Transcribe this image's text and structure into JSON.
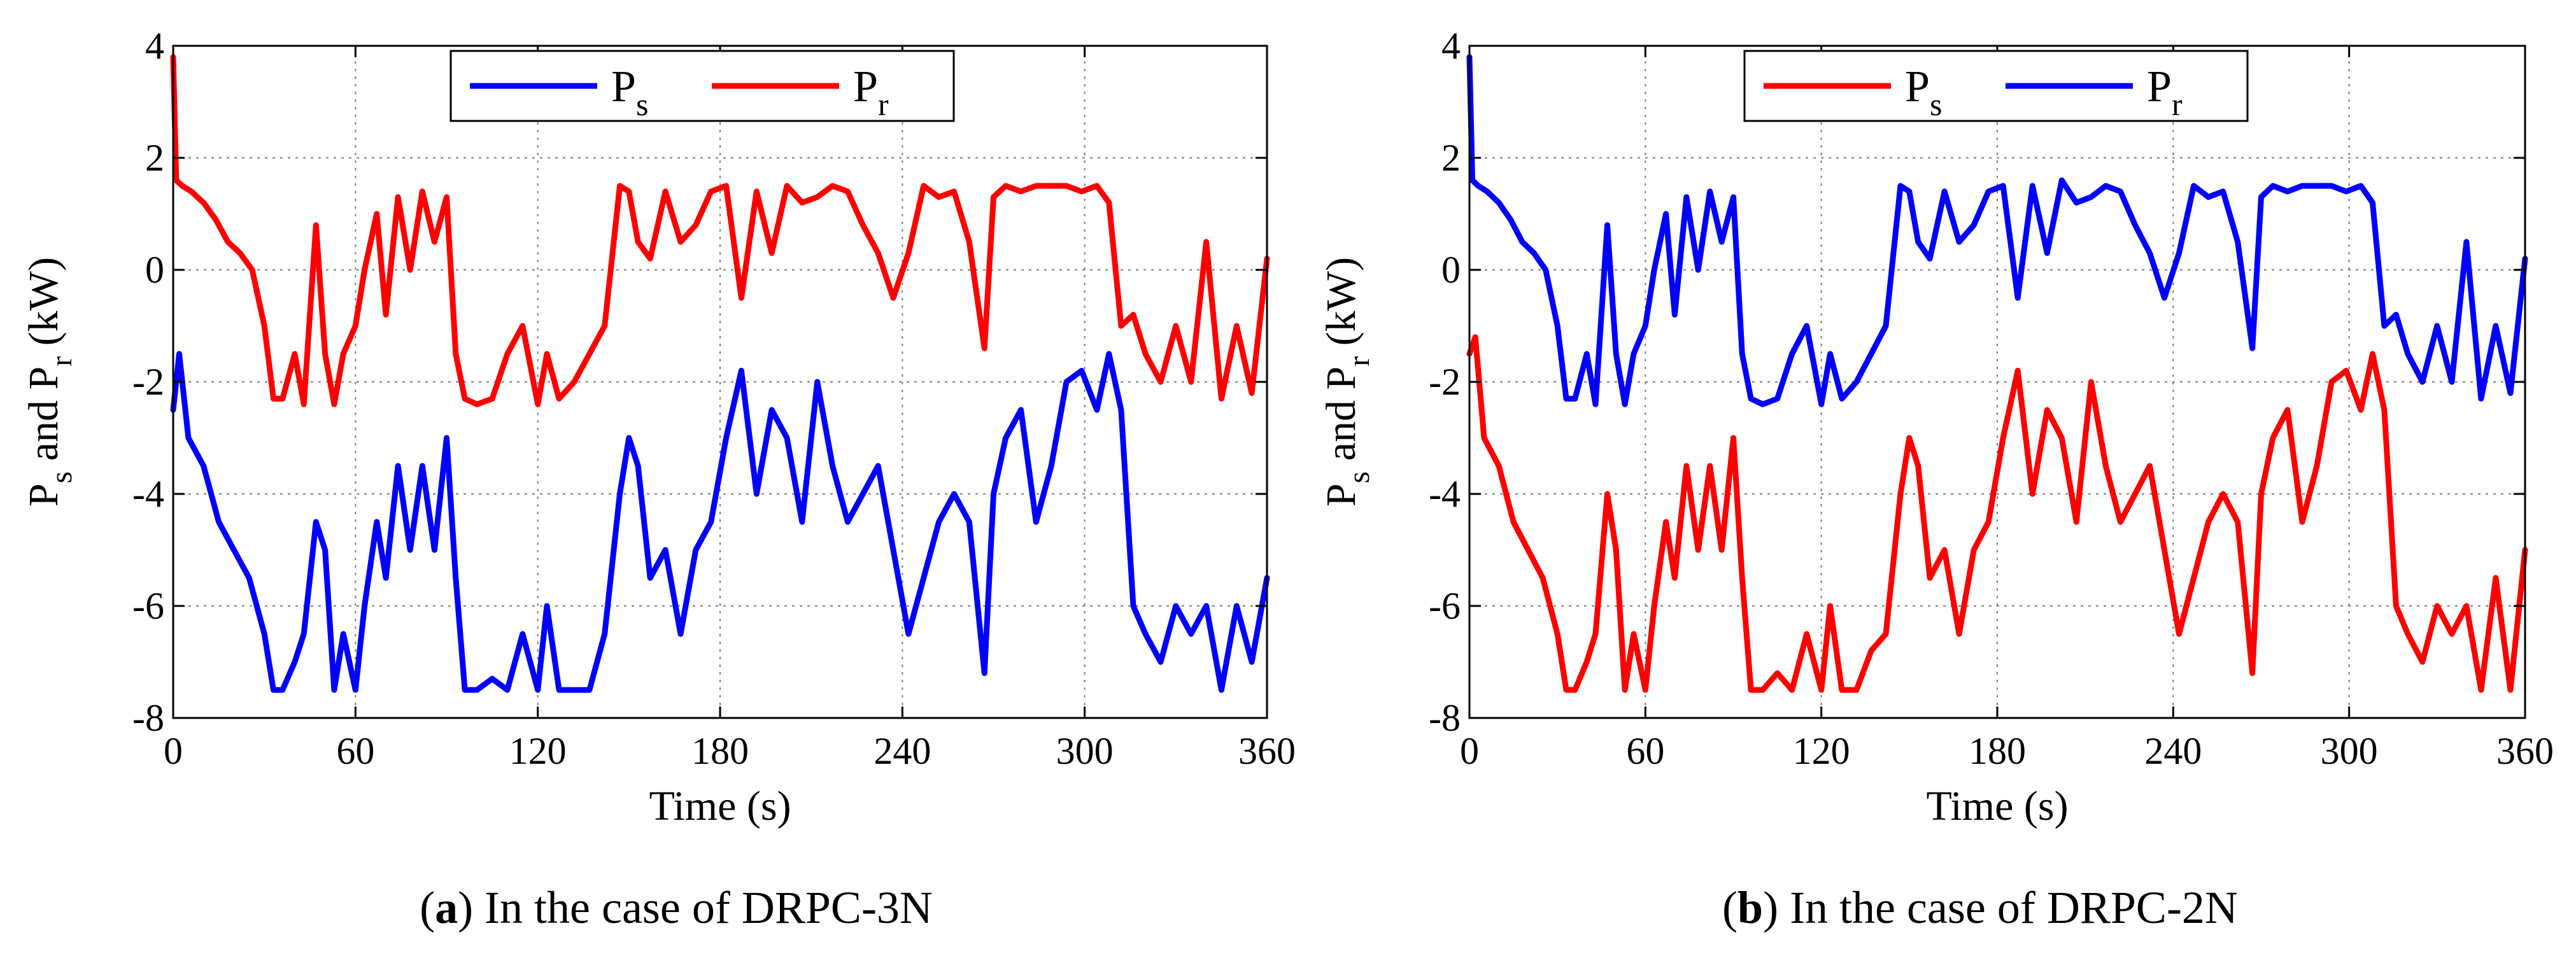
{
  "colors": {
    "blue": "#0000ff",
    "red": "#ff0000"
  },
  "chart_data": [
    {
      "type": "line",
      "id": "a",
      "caption": {
        "label": "a",
        "text": " In the case of DRPC-3N"
      },
      "xlabel": "Time  (s)",
      "ylabel": {
        "p": "P",
        "s": "s",
        "and": " and ",
        "r": "r",
        "unit": " (kW)"
      },
      "xlim": [
        0,
        360
      ],
      "ylim": [
        -8,
        4
      ],
      "xticks": [
        0,
        60,
        120,
        180,
        240,
        300,
        360
      ],
      "yticks": [
        -8,
        -6,
        -4,
        -2,
        0,
        2,
        4
      ],
      "legend_position": "top-center",
      "series": [
        {
          "name": "Ps",
          "label_main": "P",
          "label_sub": "s",
          "color": "blue",
          "x": [
            0,
            2,
            5,
            10,
            15,
            20,
            25,
            30,
            33,
            36,
            40,
            43,
            47,
            50,
            53,
            56,
            60,
            63,
            67,
            70,
            74,
            78,
            82,
            86,
            90,
            93,
            96,
            100,
            105,
            110,
            115,
            120,
            123,
            127,
            132,
            137,
            142,
            147,
            150,
            153,
            157,
            162,
            167,
            172,
            177,
            182,
            187,
            192,
            197,
            202,
            207,
            212,
            217,
            222,
            227,
            232,
            237,
            242,
            247,
            252,
            257,
            262,
            267,
            270,
            274,
            279,
            284,
            289,
            294,
            299,
            304,
            308,
            312,
            316,
            320,
            325,
            330,
            335,
            340,
            345,
            350,
            355,
            360
          ],
          "y": [
            -2.5,
            -1.5,
            -3.0,
            -3.5,
            -4.5,
            -5.0,
            -5.5,
            -6.5,
            -7.5,
            -7.5,
            -7.0,
            -6.5,
            -4.5,
            -5.0,
            -7.5,
            -6.5,
            -7.5,
            -6.0,
            -4.5,
            -5.5,
            -3.5,
            -5.0,
            -3.5,
            -5.0,
            -3.0,
            -5.5,
            -7.5,
            -7.5,
            -7.3,
            -7.5,
            -6.5,
            -7.5,
            -6.0,
            -7.5,
            -7.5,
            -7.5,
            -6.5,
            -4.0,
            -3.0,
            -3.5,
            -5.5,
            -5.0,
            -6.5,
            -5.0,
            -4.5,
            -3.0,
            -1.8,
            -4.0,
            -2.5,
            -3.0,
            -4.5,
            -2.0,
            -3.5,
            -4.5,
            -4.0,
            -3.5,
            -5.0,
            -6.5,
            -5.5,
            -4.5,
            -4.0,
            -4.5,
            -7.2,
            -4.0,
            -3.0,
            -2.5,
            -4.5,
            -3.5,
            -2.0,
            -1.8,
            -2.5,
            -1.5,
            -2.5,
            -6.0,
            -6.5,
            -7.0,
            -6.0,
            -6.5,
            -6.0,
            -7.5,
            -6.0,
            -7.0,
            -5.5
          ]
        },
        {
          "name": "Pr",
          "label_main": "P",
          "label_sub": "r",
          "color": "red",
          "x": [
            0,
            1,
            3,
            6,
            10,
            14,
            18,
            22,
            26,
            30,
            33,
            36,
            40,
            43,
            47,
            50,
            53,
            56,
            60,
            63,
            67,
            70,
            74,
            78,
            82,
            86,
            90,
            93,
            96,
            100,
            105,
            110,
            115,
            120,
            123,
            127,
            132,
            137,
            142,
            147,
            150,
            153,
            157,
            162,
            167,
            172,
            177,
            182,
            187,
            192,
            197,
            202,
            207,
            212,
            217,
            222,
            227,
            232,
            237,
            242,
            247,
            252,
            257,
            262,
            267,
            270,
            274,
            279,
            284,
            289,
            294,
            299,
            304,
            308,
            312,
            316,
            320,
            325,
            330,
            335,
            340,
            345,
            350,
            355,
            360
          ],
          "y": [
            3.8,
            1.6,
            1.5,
            1.4,
            1.2,
            0.9,
            0.5,
            0.3,
            0.0,
            -1.0,
            -2.3,
            -2.3,
            -1.5,
            -2.4,
            0.8,
            -1.5,
            -2.4,
            -1.5,
            -1.0,
            0.0,
            1.0,
            -0.8,
            1.3,
            0.0,
            1.4,
            0.5,
            1.3,
            -1.5,
            -2.3,
            -2.4,
            -2.3,
            -1.5,
            -1.0,
            -2.4,
            -1.5,
            -2.3,
            -2.0,
            -1.5,
            -1.0,
            1.5,
            1.4,
            0.5,
            0.2,
            1.4,
            0.5,
            0.8,
            1.4,
            1.5,
            -0.5,
            1.4,
            0.3,
            1.5,
            1.2,
            1.3,
            1.5,
            1.4,
            0.8,
            0.3,
            -0.5,
            0.3,
            1.5,
            1.3,
            1.4,
            0.5,
            -1.4,
            1.3,
            1.5,
            1.4,
            1.5,
            1.5,
            1.5,
            1.4,
            1.5,
            1.2,
            -1.0,
            -0.8,
            -1.5,
            -2.0,
            -1.0,
            -2.0,
            0.5,
            -2.3,
            -1.0,
            -2.2,
            0.2
          ]
        }
      ]
    },
    {
      "type": "line",
      "id": "b",
      "caption": {
        "label": "b",
        "text": " In the case of DRPC-2N"
      },
      "xlabel": "Time  (s)",
      "ylabel": {
        "p": "P",
        "s": "s",
        "and": " and ",
        "r": "r",
        "unit": " (kW)"
      },
      "xlim": [
        0,
        360
      ],
      "ylim": [
        -8,
        4
      ],
      "xticks": [
        0,
        60,
        120,
        180,
        240,
        300,
        360
      ],
      "yticks": [
        -8,
        -6,
        -4,
        -2,
        0,
        2,
        4
      ],
      "legend_position": "top-center",
      "series": [
        {
          "name": "Ps",
          "label_main": "P",
          "label_sub": "s",
          "color": "red",
          "x": [
            0,
            2,
            5,
            10,
            15,
            20,
            25,
            30,
            33,
            36,
            40,
            43,
            47,
            50,
            53,
            56,
            60,
            63,
            67,
            70,
            74,
            78,
            82,
            86,
            90,
            93,
            96,
            100,
            105,
            110,
            115,
            120,
            123,
            127,
            132,
            137,
            142,
            147,
            150,
            153,
            157,
            162,
            167,
            172,
            177,
            182,
            187,
            192,
            197,
            202,
            207,
            212,
            217,
            222,
            227,
            232,
            237,
            242,
            247,
            252,
            257,
            262,
            267,
            270,
            274,
            279,
            284,
            289,
            294,
            299,
            304,
            308,
            312,
            316,
            320,
            325,
            330,
            335,
            340,
            345,
            350,
            355,
            360
          ],
          "y": [
            -1.5,
            -1.2,
            -3.0,
            -3.5,
            -4.5,
            -5.0,
            -5.5,
            -6.5,
            -7.5,
            -7.5,
            -7.0,
            -6.5,
            -4.0,
            -5.0,
            -7.5,
            -6.5,
            -7.5,
            -6.0,
            -4.5,
            -5.5,
            -3.5,
            -5.0,
            -3.5,
            -5.0,
            -3.0,
            -5.5,
            -7.5,
            -7.5,
            -7.2,
            -7.5,
            -6.5,
            -7.5,
            -6.0,
            -7.5,
            -7.5,
            -6.8,
            -6.5,
            -4.0,
            -3.0,
            -3.5,
            -5.5,
            -5.0,
            -6.5,
            -5.0,
            -4.5,
            -3.0,
            -1.8,
            -4.0,
            -2.5,
            -3.0,
            -4.5,
            -2.0,
            -3.5,
            -4.5,
            -4.0,
            -3.5,
            -5.0,
            -6.5,
            -5.5,
            -4.5,
            -4.0,
            -4.5,
            -7.2,
            -4.0,
            -3.0,
            -2.5,
            -4.5,
            -3.5,
            -2.0,
            -1.8,
            -2.5,
            -1.5,
            -2.5,
            -6.0,
            -6.5,
            -7.0,
            -6.0,
            -6.5,
            -6.0,
            -7.5,
            -5.5,
            -7.5,
            -5.0
          ]
        },
        {
          "name": "Pr",
          "label_main": "P",
          "label_sub": "r",
          "color": "blue",
          "x": [
            0,
            1,
            3,
            6,
            10,
            14,
            18,
            22,
            26,
            30,
            33,
            36,
            40,
            43,
            47,
            50,
            53,
            56,
            60,
            63,
            67,
            70,
            74,
            78,
            82,
            86,
            90,
            93,
            96,
            100,
            105,
            110,
            115,
            120,
            123,
            127,
            132,
            137,
            142,
            147,
            150,
            153,
            157,
            162,
            167,
            172,
            177,
            182,
            187,
            192,
            197,
            202,
            207,
            212,
            217,
            222,
            227,
            232,
            237,
            242,
            247,
            252,
            257,
            262,
            267,
            270,
            274,
            279,
            284,
            289,
            294,
            299,
            304,
            308,
            312,
            316,
            320,
            325,
            330,
            335,
            340,
            345,
            350,
            355,
            360
          ],
          "y": [
            3.8,
            1.6,
            1.5,
            1.4,
            1.2,
            0.9,
            0.5,
            0.3,
            0.0,
            -1.0,
            -2.3,
            -2.3,
            -1.5,
            -2.4,
            0.8,
            -1.5,
            -2.4,
            -1.5,
            -1.0,
            0.0,
            1.0,
            -0.8,
            1.3,
            0.0,
            1.4,
            0.5,
            1.3,
            -1.5,
            -2.3,
            -2.4,
            -2.3,
            -1.5,
            -1.0,
            -2.4,
            -1.5,
            -2.3,
            -2.0,
            -1.5,
            -1.0,
            1.5,
            1.4,
            0.5,
            0.2,
            1.4,
            0.5,
            0.8,
            1.4,
            1.5,
            -0.5,
            1.5,
            0.3,
            1.6,
            1.2,
            1.3,
            1.5,
            1.4,
            0.8,
            0.3,
            -0.5,
            0.3,
            1.5,
            1.3,
            1.4,
            0.5,
            -1.4,
            1.3,
            1.5,
            1.4,
            1.5,
            1.5,
            1.5,
            1.4,
            1.5,
            1.2,
            -1.0,
            -0.8,
            -1.5,
            -2.0,
            -1.0,
            -2.0,
            0.5,
            -2.3,
            -1.0,
            -2.2,
            0.2
          ]
        }
      ]
    }
  ]
}
